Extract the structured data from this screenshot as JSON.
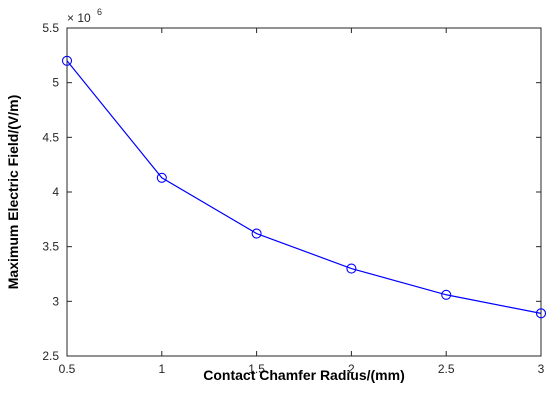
{
  "chart_data": {
    "type": "line",
    "xlabel": "Contact Chamfer Radius/(mm)",
    "ylabel": "Maximum Electric Field/(V/m)",
    "y_multiplier": {
      "prefix": "× 10",
      "exponent": "6"
    },
    "xlim": [
      0.5,
      3
    ],
    "ylim": [
      2.5,
      5.5
    ],
    "x_ticks": [
      0.5,
      1,
      1.5,
      2,
      2.5,
      3
    ],
    "x_tick_labels": [
      "0.5",
      "1",
      "1.5",
      "2",
      "2.5",
      "3"
    ],
    "y_ticks": [
      2.5,
      3,
      3.5,
      4,
      4.5,
      5,
      5.5
    ],
    "y_tick_labels": [
      "2.5",
      "3",
      "3.5",
      "4",
      "4.5",
      "5",
      "5.5"
    ],
    "grid": false,
    "series": [
      {
        "x": [
          0.5,
          1,
          1.5,
          2,
          2.5,
          3
        ],
        "values": [
          5.2,
          4.13,
          3.62,
          3.3,
          3.06,
          2.89
        ],
        "color": "#0000ff",
        "marker": "circle"
      }
    ]
  }
}
